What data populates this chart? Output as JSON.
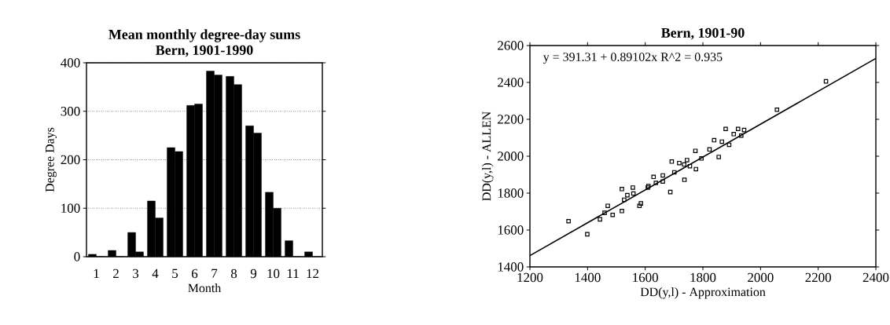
{
  "chart_data": [
    {
      "type": "bar",
      "title": "Mean monthly degree-day sums",
      "subtitle": "Bern, 1901-1990",
      "xlabel": "Month",
      "ylabel": "Degree Days",
      "categories": [
        "1",
        "2",
        "3",
        "4",
        "5",
        "6",
        "7",
        "8",
        "9",
        "10",
        "11",
        "12"
      ],
      "series": [
        {
          "color": "#000000",
          "values": [
            5,
            13,
            50,
            115,
            225,
            312,
            383,
            372,
            270,
            133,
            33,
            10
          ]
        },
        {
          "color": "#000000",
          "values": [
            0,
            0,
            10,
            80,
            217,
            315,
            375,
            355,
            255,
            100,
            0,
            0
          ]
        }
      ],
      "ylim": [
        0,
        400
      ],
      "yticks": [
        0,
        100,
        200,
        300,
        400
      ],
      "grid": "y"
    },
    {
      "type": "scatter",
      "title": "Bern, 1901-90",
      "xlabel": "DD(y,l) - Approximation",
      "ylabel": "DD(y,l) - ALLEN",
      "series": [
        {
          "type": "scatter",
          "color": "#000000",
          "marker": "square",
          "x": [
            1334,
            1399,
            1443,
            1459,
            1487,
            1470,
            1519,
            1519,
            1527,
            1538,
            1557,
            1580,
            1585,
            1609,
            1629,
            1637,
            1661,
            1687,
            1692,
            1701,
            1718,
            1736,
            1745,
            1755,
            1776,
            1774,
            1795,
            1823,
            1839,
            1855,
            1879,
            1891,
            1922,
            1933,
            1943,
            2057,
            2227,
            1559,
            1661,
            1866,
            1907,
            1611,
            1735
          ],
          "values": [
            1648,
            1577,
            1658,
            1693,
            1682,
            1731,
            1703,
            1822,
            1764,
            1789,
            1830,
            1731,
            1744,
            1830,
            1888,
            1855,
            1896,
            1806,
            1971,
            1913,
            1963,
            1872,
            1979,
            1946,
            1930,
            2029,
            1988,
            2037,
            2087,
            1996,
            2148,
            2062,
            2148,
            2112,
            2142,
            2252,
            2406,
            1798,
            1863,
            2079,
            2120,
            1838,
            1955
          ]
        },
        {
          "type": "line",
          "color": "#000000",
          "x": [
            1200,
            2400
          ],
          "values": [
            1461,
            2530
          ]
        }
      ],
      "xlim": [
        1200,
        2400
      ],
      "ylim": [
        1400,
        2600
      ],
      "xticks": [
        1200,
        1400,
        1600,
        1800,
        2000,
        2200,
        2400
      ],
      "yticks": [
        1400,
        1600,
        1800,
        2000,
        2200,
        2400,
        2600
      ],
      "annotations": [
        "y = 391.31 + 0.89102x   R^2 = 0.935"
      ]
    }
  ]
}
